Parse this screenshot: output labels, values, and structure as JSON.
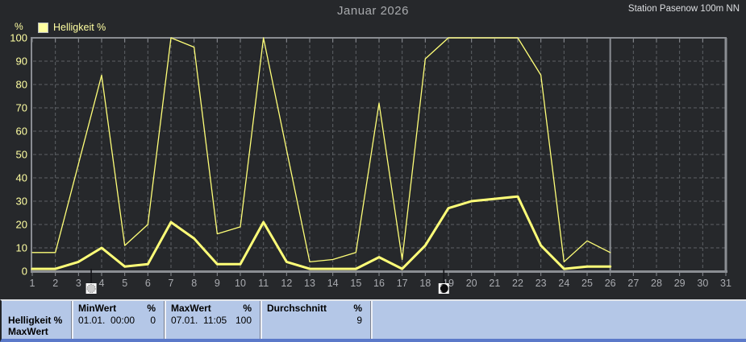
{
  "header": {
    "title": "Januar 2026",
    "station": "Station Pasenow 100m NN"
  },
  "legend": {
    "label": "Helligkeit %",
    "swatch_color": "#ffffa0"
  },
  "chart_data": {
    "type": "line",
    "title": "Januar 2026",
    "line_color": "#ffff78",
    "y_axis": {
      "min": 0,
      "max": 100,
      "step": 10,
      "unit": "%"
    },
    "x_axis": {
      "days": [
        1,
        2,
        3,
        4,
        5,
        6,
        7,
        8,
        9,
        10,
        11,
        12,
        13,
        14,
        15,
        16,
        17,
        18,
        19,
        20,
        21,
        22,
        23,
        24,
        25,
        26,
        27,
        28,
        29,
        30,
        31
      ]
    },
    "days": [
      1,
      2,
      3,
      4,
      5,
      6,
      7,
      8,
      9,
      10,
      11,
      12,
      13,
      14,
      15,
      16,
      17,
      18,
      19,
      20,
      21,
      22,
      23,
      24,
      25,
      26
    ],
    "series": [
      {
        "name": "Helligkeit % MaxWert",
        "stroke_width": 1.3,
        "values": [
          8,
          8,
          46,
          84,
          11,
          20,
          100,
          96,
          16,
          19,
          100,
          52,
          4,
          5,
          8,
          72,
          5,
          91,
          100,
          100,
          100,
          100,
          84,
          4,
          13,
          8
        ]
      },
      {
        "name": "Helligkeit %",
        "stroke_width": 3,
        "values": [
          1,
          1,
          4,
          10,
          2,
          3,
          21,
          14,
          3,
          3,
          21,
          4,
          1,
          1,
          1,
          6,
          1,
          11,
          27,
          30,
          31,
          32,
          11,
          1,
          2,
          2
        ]
      }
    ],
    "end_of_data_day": 26,
    "moon_markers": [
      {
        "type": "full-moon",
        "day": 3.55
      },
      {
        "type": "new-moon",
        "day": 18.8
      }
    ]
  },
  "summary_table": {
    "row_label_line1": "Helligkeit %",
    "row_label_line2": "MaxWert",
    "columns": [
      {
        "header": "MinWert",
        "unit": "%",
        "datetime": "01.01.  00:00",
        "value": "0"
      },
      {
        "header": "MaxWert",
        "unit": "%",
        "datetime": "07.01.  11:05",
        "value": "100"
      },
      {
        "header": "Durchschnitt",
        "unit": "%",
        "datetime": "",
        "value": "9"
      }
    ]
  }
}
